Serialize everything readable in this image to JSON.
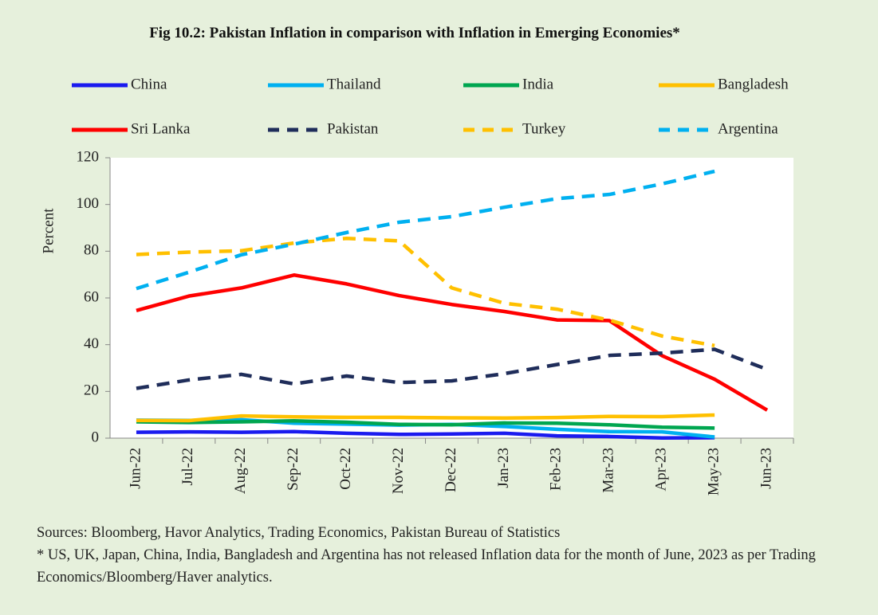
{
  "chart_data": {
    "type": "line",
    "title": "Fig 10.2: Pakistan Inflation in comparison with Inflation in Emerging Economies*",
    "y_label": "Percent",
    "categories": [
      "Jun-22",
      "Jul-22",
      "Aug-22",
      "Sep-22",
      "Oct-22",
      "Nov-22",
      "Dec-22",
      "Jan-23",
      "Feb-23",
      "Mar-23",
      "Apr-23",
      "May-23",
      "Jun-23"
    ],
    "series": [
      {
        "name": "China",
        "color": "#1a1aef",
        "dashed": false,
        "values": [
          2.5,
          2.7,
          2.5,
          2.8,
          2.1,
          1.6,
          1.8,
          2.1,
          1.0,
          0.7,
          0.1,
          0.2,
          null
        ]
      },
      {
        "name": "Thailand",
        "color": "#00b0f0",
        "dashed": false,
        "values": [
          7.7,
          7.6,
          7.9,
          6.4,
          6.0,
          5.6,
          5.9,
          5.0,
          3.8,
          2.8,
          2.7,
          0.5,
          null
        ]
      },
      {
        "name": "India",
        "color": "#00a650",
        "dashed": false,
        "values": [
          7.0,
          6.7,
          7.0,
          7.4,
          6.8,
          5.9,
          5.7,
          6.5,
          6.4,
          5.7,
          4.7,
          4.3,
          null
        ]
      },
      {
        "name": "Bangladesh",
        "color": "#ffc000",
        "dashed": false,
        "values": [
          7.6,
          7.5,
          9.5,
          9.1,
          8.9,
          8.9,
          8.7,
          8.6,
          8.8,
          9.3,
          9.2,
          9.9,
          null
        ]
      },
      {
        "name": "Sri Lanka",
        "color": "#ff0000",
        "dashed": false,
        "values": [
          54.6,
          60.8,
          64.3,
          69.8,
          66.0,
          61.0,
          57.2,
          54.2,
          50.6,
          50.3,
          35.3,
          25.2,
          12.0
        ]
      },
      {
        "name": "Pakistan",
        "color": "#1f2d5a",
        "dashed": true,
        "values": [
          21.3,
          24.9,
          27.3,
          23.2,
          26.6,
          23.8,
          24.5,
          27.6,
          31.5,
          35.4,
          36.4,
          38.0,
          29.4
        ]
      },
      {
        "name": "Turkey",
        "color": "#ffc000",
        "dashed": true,
        "values": [
          78.6,
          79.6,
          80.2,
          83.5,
          85.5,
          84.4,
          64.3,
          57.7,
          55.2,
          50.5,
          43.7,
          39.6,
          null
        ]
      },
      {
        "name": "Argentina",
        "color": "#00b0f0",
        "dashed": true,
        "values": [
          64.0,
          71.0,
          78.5,
          83.0,
          88.0,
          92.4,
          94.8,
          98.8,
          102.5,
          104.3,
          108.8,
          114.2,
          null
        ]
      }
    ],
    "ylim": [
      0,
      120
    ],
    "yticks": [
      0,
      20,
      40,
      60,
      80,
      100,
      120
    ],
    "grid": false,
    "notes": [
      "Sources: Bloomberg, Havor Analytics, Trading Economics, Pakistan Bureau of Statistics",
      "* US, UK, Japan, China, India, Bangladesh and Argentina has not released  Inflation data for the month of June, 2023 as per Trading Economics/Bloomberg/Haver analytics."
    ]
  }
}
